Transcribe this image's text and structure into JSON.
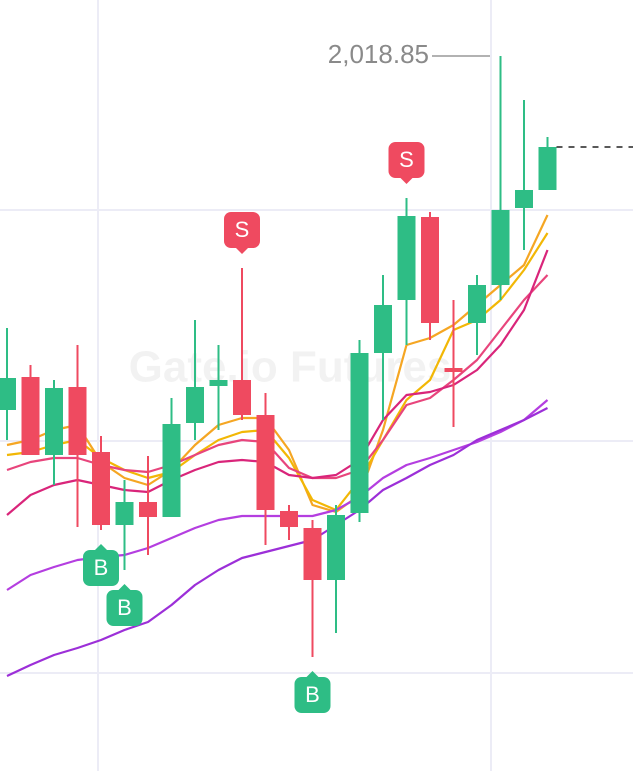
{
  "chart_data": {
    "type": "candlestick",
    "watermark": "Gate.io Futures",
    "open": [
      1983.45,
      1986.75,
      1978.95,
      1985.75,
      1979.25,
      1971.95,
      1974.25,
      1972.75,
      1982.15,
      1985.85,
      1986.45,
      1982.95,
      1973.35,
      1971.65,
      1966.45,
      1973.15,
      1989.15,
      1994.45,
      2002.75,
      1987.65,
      1992.15,
      1995.95,
      2003.65,
      2005.45
    ],
    "high": [
      1991.65,
      1987.95,
      1986.45,
      1989.95,
      1980.85,
      1976.45,
      1978.85,
      1984.65,
      1992.45,
      1989.95,
      1997.65,
      1985.15,
      1973.95,
      1972.45,
      1973.95,
      1990.45,
      1996.95,
      2004.65,
      2003.25,
      1994.45,
      1996.95,
      2018.85,
      2014.45,
      2010.75
    ],
    "low": [
      1980.45,
      1978.95,
      1975.95,
      1971.75,
      1971.45,
      1967.45,
      1968.95,
      1972.75,
      1980.45,
      1981.45,
      1982.45,
      1969.95,
      1970.45,
      1958.75,
      1961.15,
      1972.25,
      1982.45,
      1989.95,
      1990.45,
      1981.75,
      1988.95,
      1994.45,
      1999.45,
      2005.45
    ],
    "close": [
      1986.65,
      1978.95,
      1985.65,
      1978.95,
      1971.95,
      1974.25,
      1972.75,
      1982.05,
      1985.75,
      1986.45,
      1982.95,
      1973.45,
      1971.75,
      1966.45,
      1972.95,
      1989.15,
      1993.95,
      2002.85,
      1992.15,
      1987.25,
      1995.95,
      2003.45,
      2005.45,
      2009.75
    ],
    "colors": {
      "up": "#2ebd85",
      "down": "#ef4a60"
    },
    "signals": [
      null,
      null,
      null,
      null,
      "B",
      "B",
      null,
      null,
      null,
      null,
      "S",
      null,
      null,
      "B",
      null,
      null,
      null,
      "S",
      null,
      null,
      null,
      null,
      null,
      null
    ],
    "price_marker": {
      "value": 2018.85,
      "label": "2,018.85"
    },
    "series": [
      {
        "color": "#f5a623",
        "values": [
          1979.95,
          1980.45,
          1981.45,
          1981.95,
          1978.25,
          1976.65,
          1975.95,
          1977.45,
          1979.95,
          1981.95,
          1982.65,
          1982.65,
          1979.45,
          1973.95,
          1973.25,
          1974.95,
          1981.45,
          1989.95,
          1990.65,
          1991.95,
          1993.95,
          1995.95,
          1997.95,
          2002.95
        ]
      },
      {
        "color": "#f2b705",
        "values": [
          1978.95,
          1979.25,
          1979.95,
          1980.45,
          1978.65,
          1977.45,
          1976.65,
          1977.25,
          1978.95,
          1980.45,
          1981.25,
          1981.45,
          1978.65,
          1974.45,
          1973.45,
          1976.45,
          1980.45,
          1984.45,
          1986.45,
          1991.45,
          1992.45,
          1994.45,
          1997.45,
          2001.15
        ]
      },
      {
        "color": "#e8457c",
        "values": [
          1977.45,
          1978.25,
          1978.65,
          1978.65,
          1977.95,
          1977.45,
          1977.25,
          1977.95,
          1978.95,
          1979.95,
          1980.45,
          1980.25,
          1977.65,
          1976.65,
          1976.65,
          1977.45,
          1980.45,
          1983.95,
          1984.65,
          1986.45,
          1988.45,
          1991.45,
          1994.45,
          1996.95
        ]
      },
      {
        "color": "#d9257a",
        "values": [
          1972.95,
          1974.95,
          1975.95,
          1976.45,
          1975.95,
          1975.45,
          1975.25,
          1976.45,
          1977.45,
          1978.25,
          1978.45,
          1978.25,
          1976.95,
          1976.65,
          1976.95,
          1978.45,
          1982.45,
          1984.95,
          1985.25,
          1985.95,
          1987.45,
          1989.95,
          1993.45,
          1999.45
        ]
      },
      {
        "color": "#b43ee0",
        "values": [
          1965.45,
          1966.95,
          1967.75,
          1968.45,
          1968.75,
          1968.95,
          1969.65,
          1970.65,
          1971.65,
          1972.45,
          1972.85,
          1972.85,
          1972.85,
          1972.85,
          1973.45,
          1974.75,
          1976.65,
          1977.95,
          1978.65,
          1979.45,
          1980.25,
          1981.25,
          1982.45,
          1984.45
        ]
      },
      {
        "color": "#9c2fd8",
        "values": [
          1956.85,
          1957.95,
          1958.95,
          1959.65,
          1960.45,
          1961.45,
          1962.25,
          1963.95,
          1965.95,
          1967.45,
          1968.65,
          1969.25,
          1969.85,
          1970.45,
          1971.95,
          1973.45,
          1975.45,
          1976.65,
          1977.95,
          1978.95,
          1980.45,
          1981.45,
          1982.45,
          1983.65
        ]
      }
    ]
  }
}
